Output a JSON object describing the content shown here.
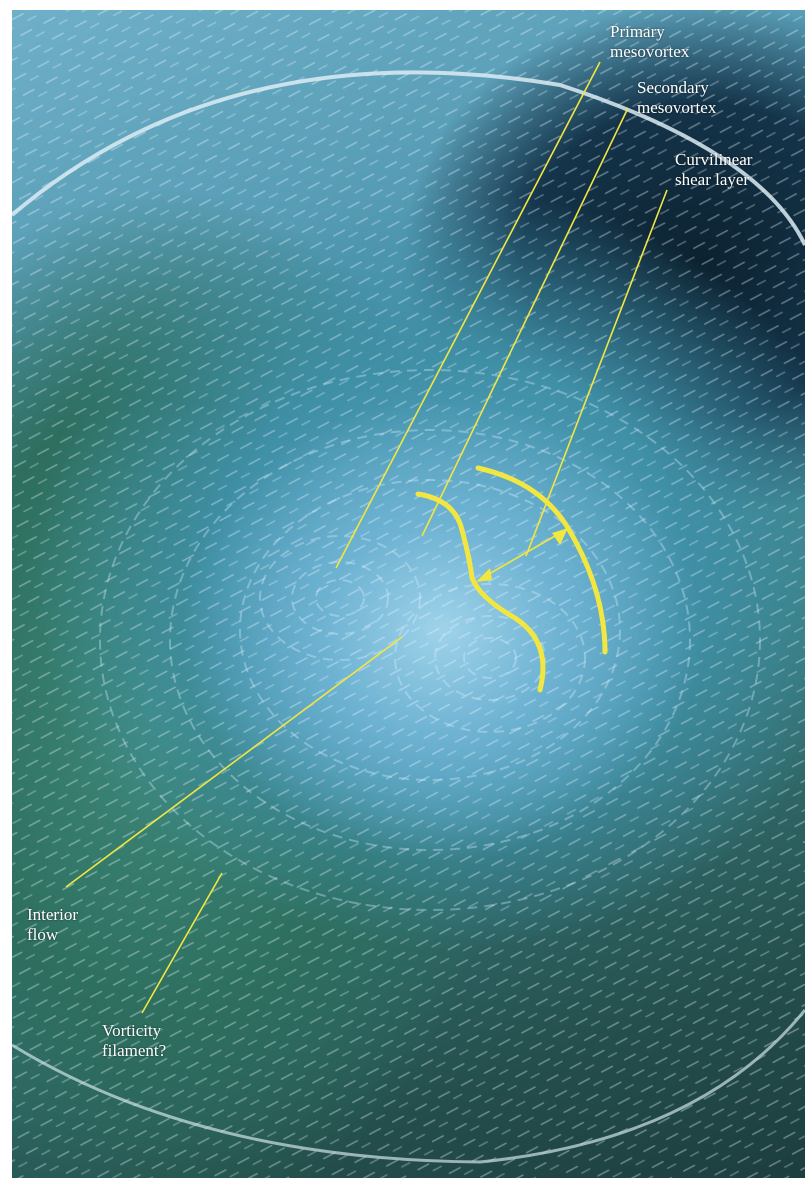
{
  "labels": {
    "primary_mesovortex": "Primary\nmesovortex",
    "secondary_mesovortex": "Secondary\nmesovortex",
    "curvilinear_shear_layer": "Curvilinear\nshear layer",
    "interior_flow": "Interior\nflow",
    "vorticity_filament": "Vorticity\nfilament?"
  },
  "colors": {
    "annotation": "#f2e640",
    "label_text": "#ffffff"
  }
}
